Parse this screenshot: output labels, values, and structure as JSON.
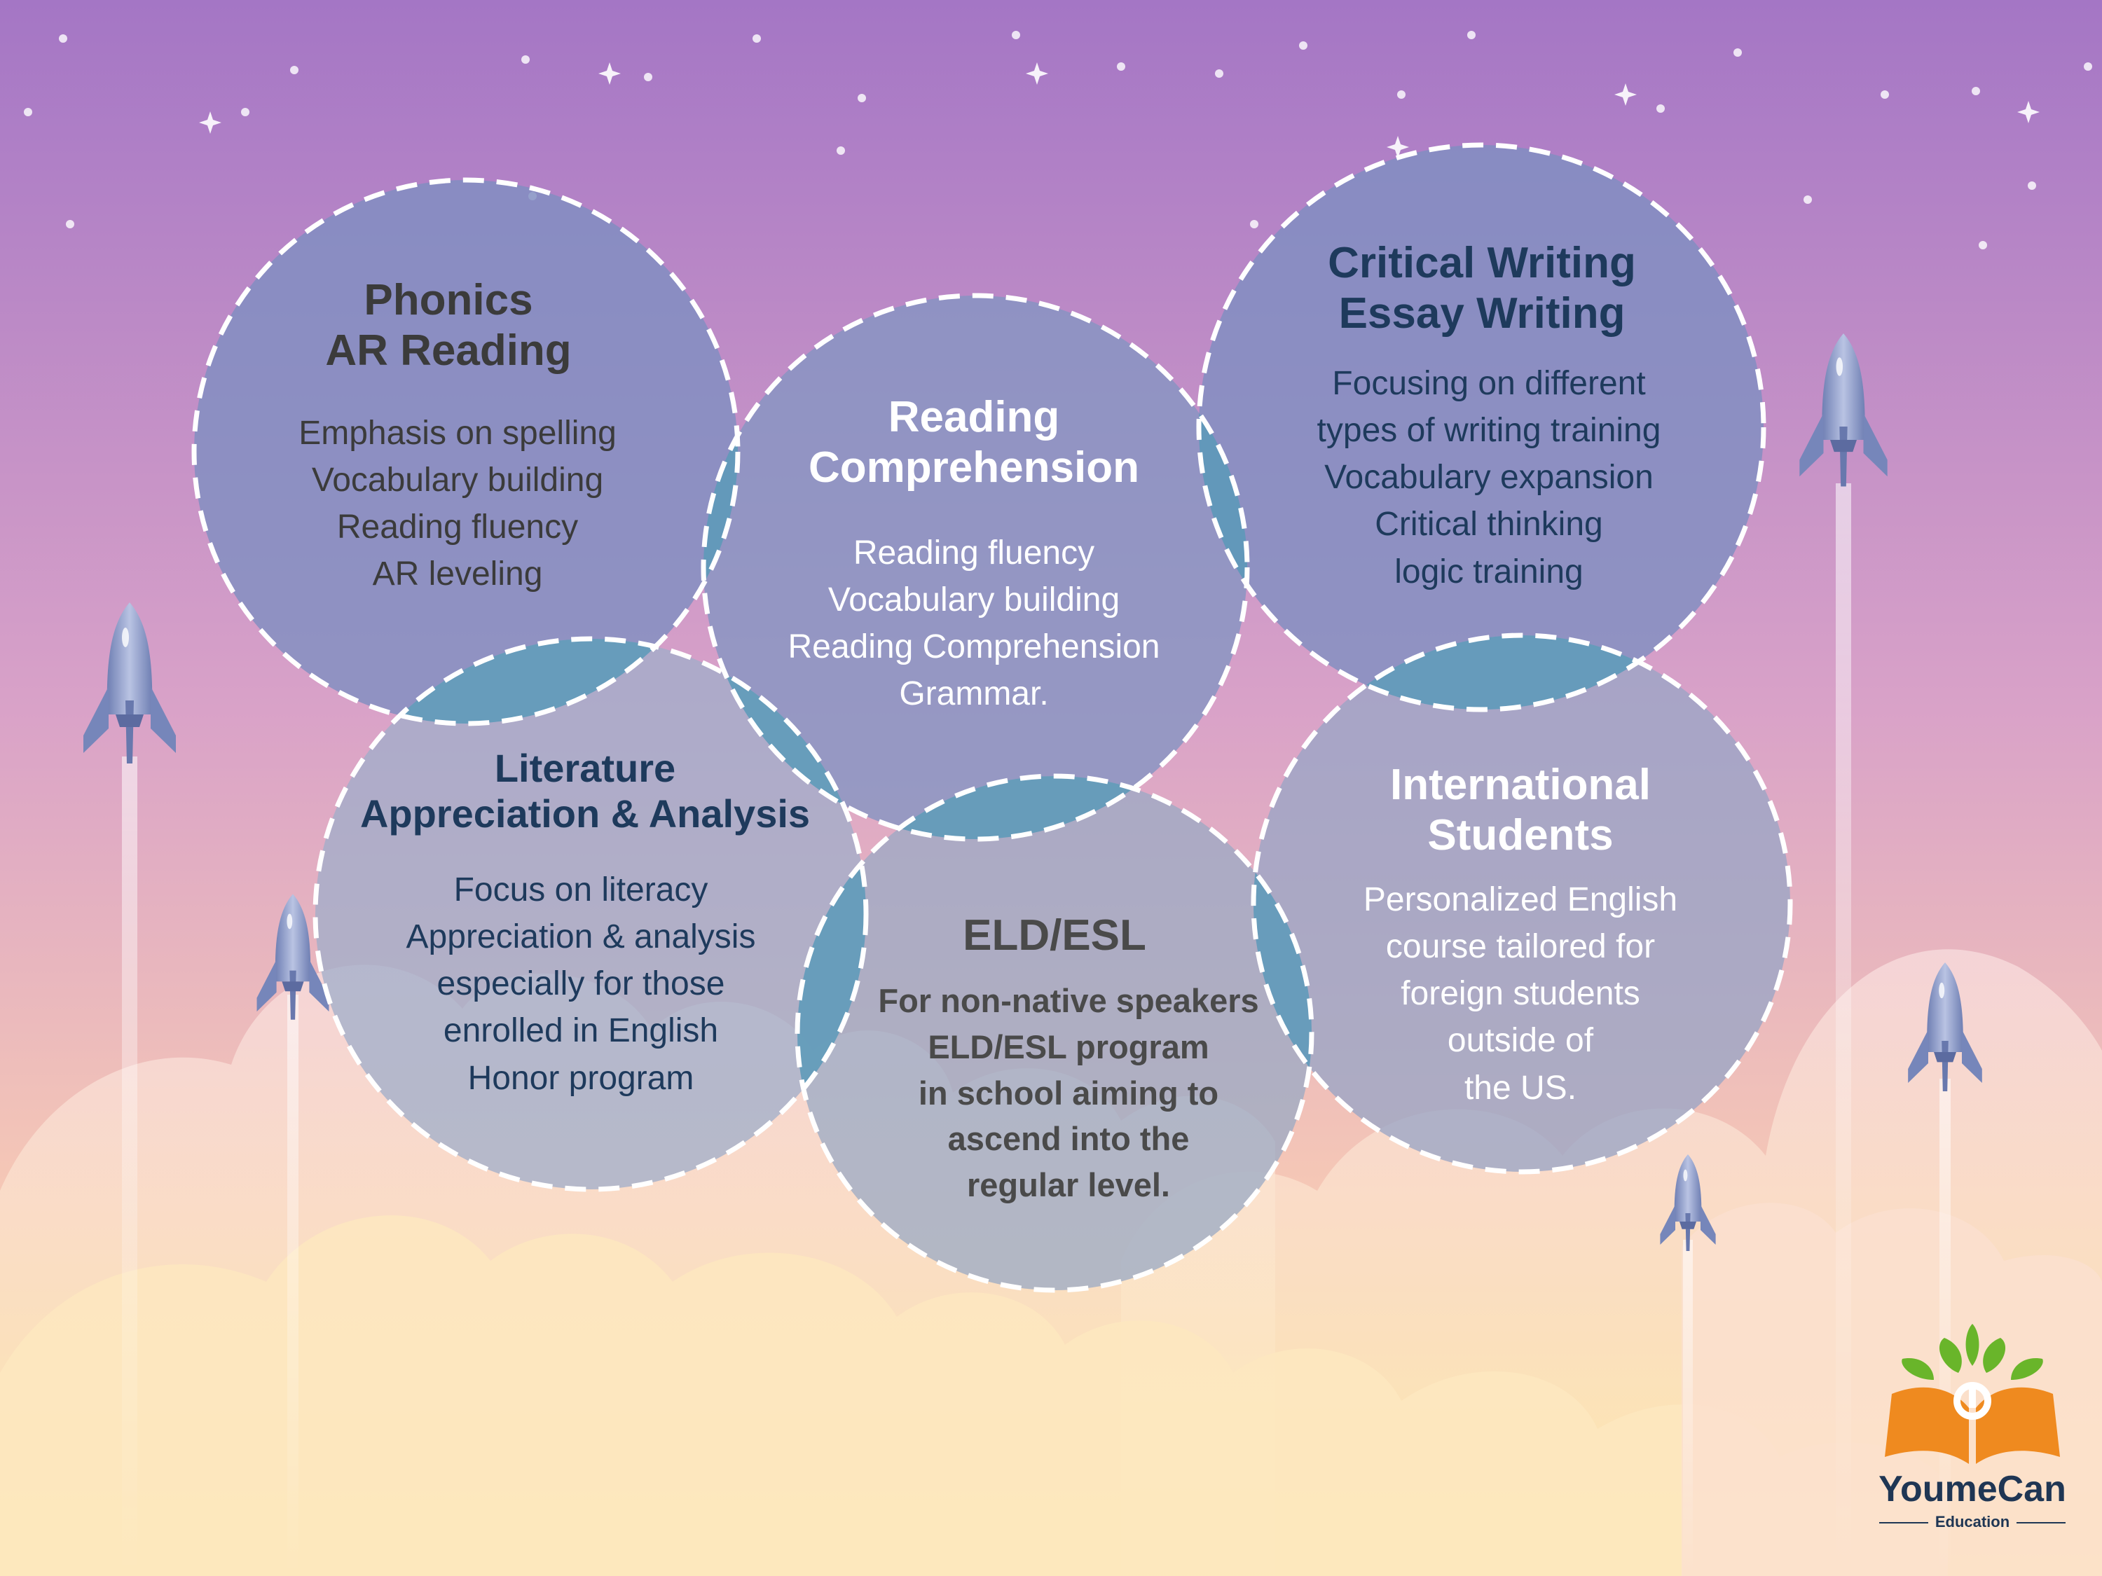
{
  "colors": {
    "sky_top": "#a578c6",
    "sky_mid": "#dca4c6",
    "sky_bottom": "#fbe39c",
    "circle_fill": "#8e9bc2",
    "overlap_fill": "#5e9bb8",
    "dash_stroke": "#ffffff",
    "dark_text": "#3b3b3b",
    "navy_text": "#1e3a5c",
    "white_text": "#ffffff",
    "logo_orange": "#ef8a1f",
    "logo_green": "#69b52a",
    "logo_text": "#1f3654"
  },
  "circles": [
    {
      "id": "phonics",
      "title": [
        "Phonics",
        "AR Reading"
      ],
      "description": [
        "Emphasis on spelling",
        "Vocabulary building",
        "Reading fluency",
        "AR leveling"
      ]
    },
    {
      "id": "reading",
      "title": [
        "Reading",
        "Comprehension"
      ],
      "description": [
        "Reading fluency",
        "Vocabulary building",
        "Reading Comprehension",
        "Grammar."
      ]
    },
    {
      "id": "writing",
      "title": [
        "Critical Writing",
        "Essay Writing"
      ],
      "description": [
        "Focusing on different",
        "types of writing training",
        "Vocabulary expansion",
        "Critical thinking",
        "logic training"
      ]
    },
    {
      "id": "literature",
      "title": [
        "Literature",
        "Appreciation & Analysis"
      ],
      "description": [
        "Focus on literacy",
        "Appreciation & analysis",
        "especially for those",
        "enrolled in English",
        "Honor program"
      ]
    },
    {
      "id": "eld",
      "title": [
        "ELD/ESL"
      ],
      "description": [
        "For non-native speakers",
        "ELD/ESL program",
        "in school aiming to",
        "ascend into the",
        "regular level."
      ]
    },
    {
      "id": "international",
      "title": [
        "International",
        "Students"
      ],
      "description": [
        "Personalized English",
        "course tailored for",
        "foreign students",
        "outside of",
        "the US."
      ]
    }
  ],
  "logo": {
    "name": "YoumeCan",
    "subtitle": "Education",
    "icon": "tree-book-icon"
  },
  "decorations": {
    "rocket_icon": "rocket-icon",
    "star_icon": "star-icon",
    "cloud_icon": "cloud-icon"
  }
}
